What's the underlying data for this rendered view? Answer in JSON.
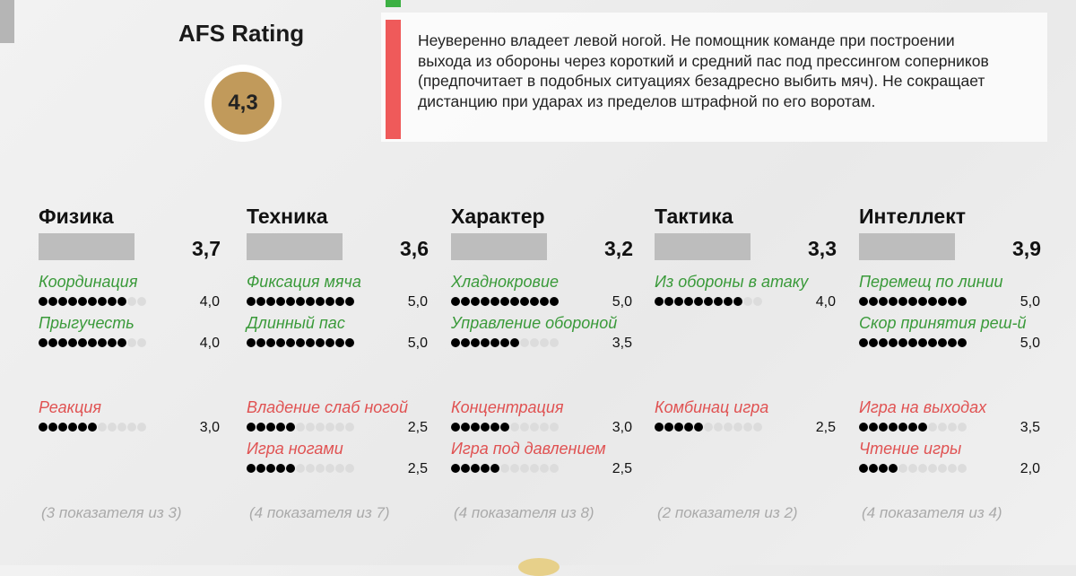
{
  "rating": {
    "title": "AFS Rating",
    "value": "4,3"
  },
  "weakness": "Неуверенно владеет левой ногой. Не помощник команде при построении выхода из обороны через короткий и средний пас под прессингом соперников (предпочитает в подобных ситуациях безадресно выбить мяч). Не сокращает дистанцию при ударах из пределов штрафной по его воротам.",
  "categories": [
    {
      "name": "Физика",
      "score": "3,7",
      "note": "(3 показателя из 3)",
      "strong": [
        {
          "name": "Координация",
          "value": "4,0"
        },
        {
          "name": "Прыгучесть",
          "value": "4,0"
        }
      ],
      "weak": [
        {
          "name": "Реакция",
          "value": "3,0"
        }
      ]
    },
    {
      "name": "Техника",
      "score": "3,6",
      "note": "(4 показателя из 7)",
      "strong": [
        {
          "name": "Фиксация мяча",
          "value": "5,0"
        },
        {
          "name": "Длинный пас",
          "value": "5,0"
        }
      ],
      "weak": [
        {
          "name": "Владение слаб ногой",
          "value": "2,5"
        },
        {
          "name": "Игра ногами",
          "value": "2,5"
        }
      ]
    },
    {
      "name": "Характер",
      "score": "3,2",
      "note": "(4 показателя из 8)",
      "strong": [
        {
          "name": "Хладнокровие",
          "value": "5,0"
        },
        {
          "name": "Управление обороной",
          "value": "3,5"
        }
      ],
      "weak": [
        {
          "name": "Концентрация",
          "value": "3,0"
        },
        {
          "name": "Игра под давлением",
          "value": "2,5"
        }
      ]
    },
    {
      "name": "Тактика",
      "score": "3,3",
      "note": "(2 показателя из 2)",
      "strong": [
        {
          "name": "Из обороны в атаку",
          "value": "4,0"
        }
      ],
      "weak": [
        {
          "name": "Комбинац игра",
          "value": "2,5"
        }
      ]
    },
    {
      "name": "Интеллект",
      "score": "3,9",
      "note": "(4 показателя из 4)",
      "strong": [
        {
          "name": "Перемещ по линии",
          "value": "5,0"
        },
        {
          "name": "Скор принятия реш-й",
          "value": "5,0"
        }
      ],
      "weak": [
        {
          "name": "Игра на выходах",
          "value": "3,5"
        },
        {
          "name": "Чтение игры",
          "value": "2,0"
        }
      ]
    }
  ]
}
